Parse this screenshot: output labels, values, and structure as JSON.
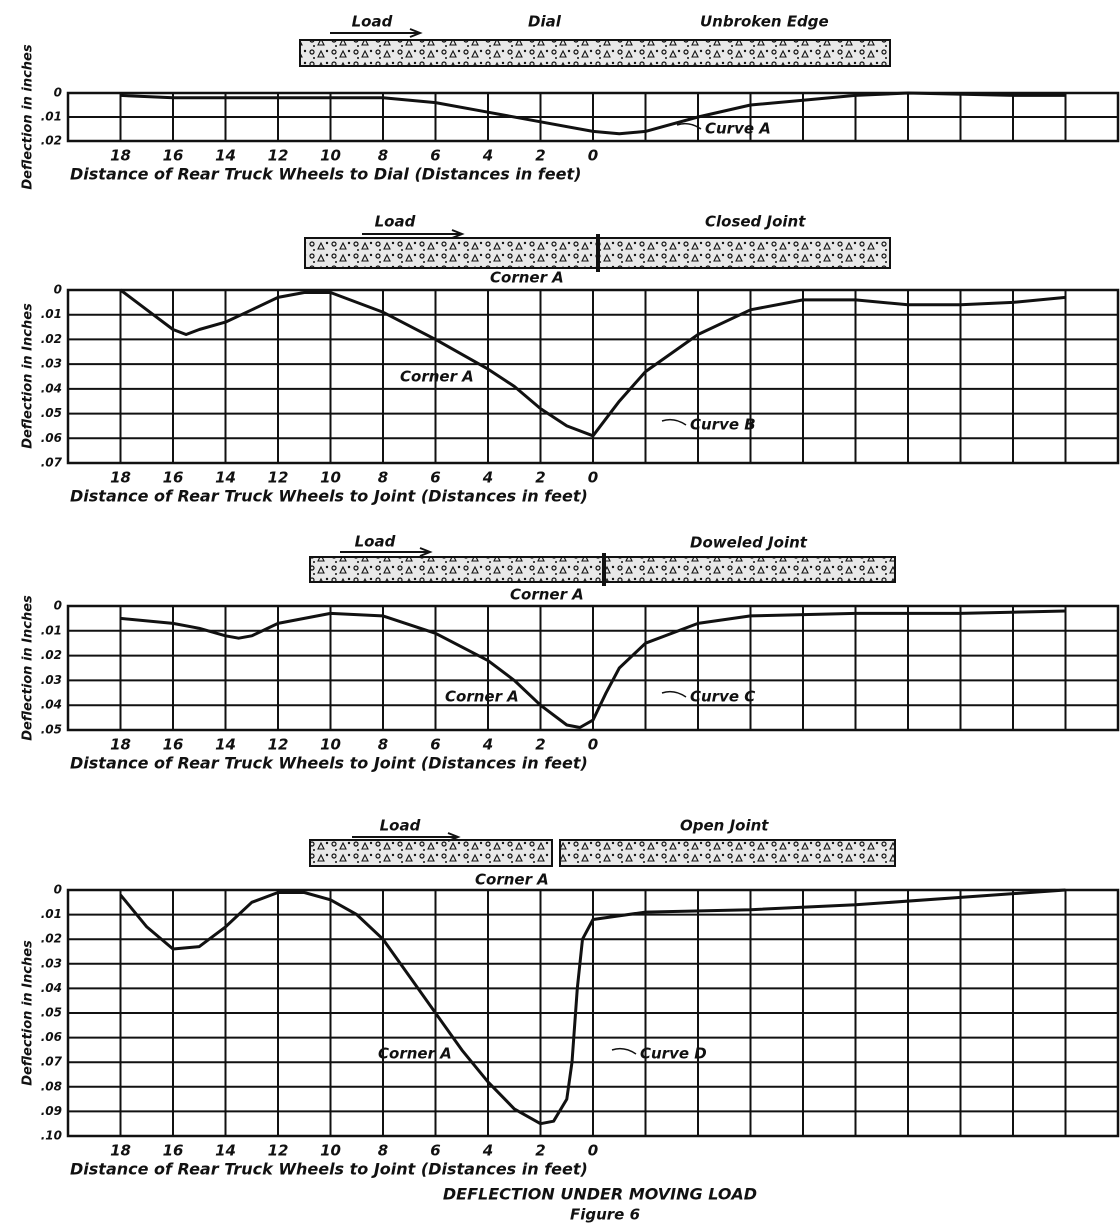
{
  "figure": {
    "caption": "DEFLECTION UNDER MOVING LOAD",
    "label": "Figure 6"
  },
  "chart_data": [
    {
      "type": "line",
      "x_label": "Distance of Rear Truck Wheels to Dial (Distances in feet)",
      "y_label": "Deflection in inches",
      "diagram_labels": [
        "Load",
        "Dial",
        "Unbroken Edge"
      ],
      "xlim": [
        20,
        -20
      ],
      "ylim": [
        0,
        0.02
      ],
      "y_inverted": true,
      "grid": true,
      "xticks": [
        18,
        16,
        14,
        12,
        10,
        8,
        6,
        4,
        2,
        0
      ],
      "yticks": [
        0,
        {
          "value": 0.01,
          "label": ".01"
        },
        {
          "value": 0.02,
          "label": ".02"
        }
      ],
      "series": [
        {
          "name": "Curve A",
          "color": "#111111",
          "x": [
            18,
            16,
            12,
            8,
            6,
            4,
            2,
            0,
            -1,
            -2,
            -4,
            -6,
            -8,
            -10,
            -12,
            -16,
            -18
          ],
          "values": [
            0.001,
            0.002,
            0.002,
            0.002,
            0.004,
            0.008,
            0.012,
            0.016,
            0.017,
            0.016,
            0.01,
            0.005,
            0.003,
            0.001,
            0,
            0.001,
            0.001
          ]
        }
      ]
    },
    {
      "type": "line",
      "x_label": "Distance of Rear Truck Wheels to Joint (Distances in feet)",
      "y_label": "Deflection in Inches",
      "diagram_labels": [
        "Load",
        "Closed Joint",
        "Corner A"
      ],
      "curve_annotation": "Corner A",
      "xlim": [
        20,
        -20
      ],
      "ylim": [
        0,
        0.07
      ],
      "y_inverted": true,
      "grid": true,
      "xticks": [
        18,
        16,
        14,
        12,
        10,
        8,
        6,
        4,
        2,
        0
      ],
      "yticks": [
        0,
        {
          "value": 0.01,
          "label": ".01"
        },
        {
          "value": 0.02,
          "label": ".02"
        },
        {
          "value": 0.03,
          "label": ".03"
        },
        {
          "value": 0.04,
          "label": ".04"
        },
        {
          "value": 0.05,
          "label": ".05"
        },
        {
          "value": 0.06,
          "label": ".06"
        },
        {
          "value": 0.07,
          "label": ".07"
        }
      ],
      "series": [
        {
          "name": "Curve B",
          "color": "#111111",
          "x": [
            18,
            17,
            16,
            15.5,
            15,
            14,
            13,
            12,
            11,
            10,
            8,
            6,
            4,
            3,
            2,
            1,
            0,
            -1,
            -2,
            -4,
            -6,
            -8,
            -10,
            -12,
            -14,
            -16,
            -18
          ],
          "values": [
            0,
            0.008,
            0.016,
            0.018,
            0.016,
            0.013,
            0.008,
            0.003,
            0.001,
            0.001,
            0.009,
            0.02,
            0.032,
            0.039,
            0.048,
            0.055,
            0.059,
            0.045,
            0.033,
            0.018,
            0.008,
            0.004,
            0.004,
            0.006,
            0.006,
            0.005,
            0.003
          ]
        }
      ]
    },
    {
      "type": "line",
      "x_label": "Distance of Rear Truck Wheels to Joint (Distances in feet)",
      "y_label": "Deflection in Inches",
      "diagram_labels": [
        "Load",
        "Doweled Joint",
        "Corner A"
      ],
      "curve_annotation": "Corner A",
      "xlim": [
        20,
        -20
      ],
      "ylim": [
        0,
        0.05
      ],
      "y_inverted": true,
      "grid": true,
      "xticks": [
        18,
        16,
        14,
        12,
        10,
        8,
        6,
        4,
        2,
        0
      ],
      "yticks": [
        0,
        {
          "value": 0.01,
          "label": ".01"
        },
        {
          "value": 0.02,
          "label": ".02"
        },
        {
          "value": 0.03,
          "label": ".03"
        },
        {
          "value": 0.04,
          "label": ".04"
        },
        {
          "value": 0.05,
          "label": ".05"
        }
      ],
      "series": [
        {
          "name": "Curve C",
          "color": "#111111",
          "x": [
            18,
            16,
            15,
            14,
            13.5,
            13,
            12,
            10,
            8,
            6,
            4,
            3,
            2,
            1,
            0.5,
            0,
            -0.5,
            -1,
            -2,
            -4,
            -6,
            -10,
            -14,
            -18
          ],
          "values": [
            0.005,
            0.007,
            0.009,
            0.012,
            0.013,
            0.012,
            0.007,
            0.003,
            0.004,
            0.011,
            0.022,
            0.03,
            0.04,
            0.048,
            0.049,
            0.046,
            0.035,
            0.025,
            0.015,
            0.007,
            0.004,
            0.003,
            0.003,
            0.002
          ]
        }
      ]
    },
    {
      "type": "line",
      "x_label": "Distance of Rear Truck Wheels to Joint (Distances in feet)",
      "y_label": "Deflection in Inches",
      "diagram_labels": [
        "Load",
        "Open Joint",
        "Corner A"
      ],
      "curve_annotation": "Corner A",
      "xlim": [
        20,
        -20
      ],
      "ylim": [
        0,
        0.1
      ],
      "y_inverted": true,
      "grid": true,
      "xticks": [
        18,
        16,
        14,
        12,
        10,
        8,
        6,
        4,
        2,
        0
      ],
      "yticks": [
        0,
        {
          "value": 0.01,
          "label": ".01"
        },
        {
          "value": 0.02,
          "label": ".02"
        },
        {
          "value": 0.03,
          "label": ".03"
        },
        {
          "value": 0.04,
          "label": ".04"
        },
        {
          "value": 0.05,
          "label": ".05"
        },
        {
          "value": 0.06,
          "label": ".06"
        },
        {
          "value": 0.07,
          "label": ".07"
        },
        {
          "value": 0.08,
          "label": ".08"
        },
        {
          "value": 0.09,
          "label": ".09"
        },
        {
          "value": 0.1,
          "label": ".10"
        }
      ],
      "series": [
        {
          "name": "Curve D",
          "color": "#111111",
          "x": [
            18,
            17,
            16,
            15,
            14,
            13,
            12,
            11,
            10,
            9,
            8,
            7,
            6,
            5,
            4,
            3,
            2,
            1.5,
            1,
            0.8,
            0.6,
            0.4,
            0,
            -2,
            -6,
            -10,
            -14,
            -18
          ],
          "values": [
            0.002,
            0.015,
            0.024,
            0.023,
            0.015,
            0.005,
            0.001,
            0.001,
            0.004,
            0.01,
            0.02,
            0.035,
            0.05,
            0.065,
            0.078,
            0.089,
            0.095,
            0.094,
            0.085,
            0.07,
            0.04,
            0.02,
            0.012,
            0.009,
            0.008,
            0.006,
            0.003,
            0
          ]
        }
      ]
    }
  ]
}
